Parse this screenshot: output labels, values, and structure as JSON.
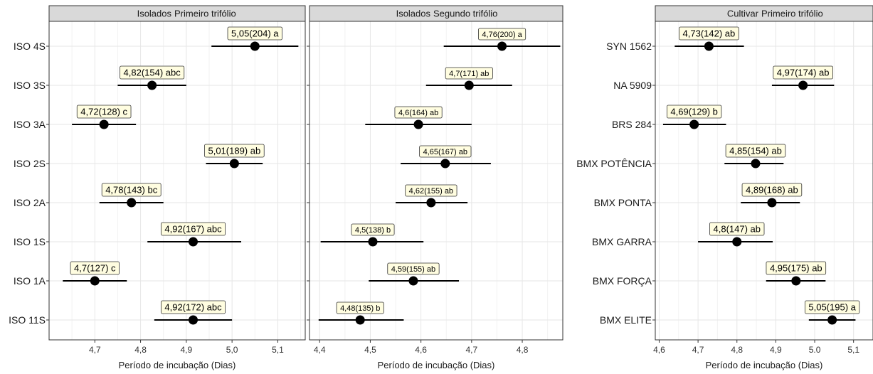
{
  "chart_data": [
    {
      "type": "scatter",
      "strip": {
        "left": "Isolados",
        "right": "Primeiro trifólio"
      },
      "xlabel": "Período de incubação (Dias)",
      "xlim": [
        4.6,
        5.16
      ],
      "xticks": [
        "4,7",
        "4,8",
        "4,9",
        "5,0",
        "5,1"
      ],
      "xtick_values": [
        4.7,
        4.8,
        4.9,
        5.0,
        5.1
      ],
      "categories": [
        "ISO 4S",
        "ISO 3S",
        "ISO 3A",
        "ISO 2S",
        "ISO 2A",
        "ISO 1S",
        "ISO 1A",
        "ISO 11S"
      ],
      "points": [
        {
          "label": "ISO 4S",
          "mean": 5.05,
          "low": 4.955,
          "high": 5.145,
          "text": "5,05(204)  a"
        },
        {
          "label": "ISO 3S",
          "mean": 4.825,
          "low": 4.75,
          "high": 4.9,
          "text": "4,82(154)  abc"
        },
        {
          "label": "ISO 3A",
          "mean": 4.72,
          "low": 4.65,
          "high": 4.79,
          "text": "4,72(128)    c"
        },
        {
          "label": "ISO 2S",
          "mean": 5.005,
          "low": 4.943,
          "high": 5.067,
          "text": "5,01(189)  ab"
        },
        {
          "label": "ISO 2A",
          "mean": 4.78,
          "low": 4.71,
          "high": 4.85,
          "text": "4,78(143)   bc"
        },
        {
          "label": "ISO 1S",
          "mean": 4.915,
          "low": 4.815,
          "high": 5.02,
          "text": "4,92(167)  abc"
        },
        {
          "label": "ISO 1A",
          "mean": 4.7,
          "low": 4.63,
          "high": 4.77,
          "text": "4,7(127)    c"
        },
        {
          "label": "ISO 11S",
          "mean": 4.915,
          "low": 4.83,
          "high": 5.0,
          "text": "4,92(172)  abc"
        }
      ]
    },
    {
      "type": "scatter",
      "strip": {
        "left": "Isolados",
        "right": "Segundo trifólio"
      },
      "xlabel": "Período de incubação (Dias)",
      "xlim": [
        4.38,
        4.88
      ],
      "xticks": [
        "4,4",
        "4,5",
        "4,6",
        "4,7",
        "4,8"
      ],
      "xtick_values": [
        4.4,
        4.5,
        4.6,
        4.7,
        4.8
      ],
      "categories": [
        "ISO 4S",
        "ISO 3S",
        "ISO 3A",
        "ISO 2S",
        "ISO 2A",
        "ISO 1S",
        "ISO 1A",
        "ISO 11S"
      ],
      "points": [
        {
          "label": "ISO 4S",
          "mean": 4.76,
          "low": 4.645,
          "high": 4.875,
          "text": "4,76(200)  a"
        },
        {
          "label": "ISO 3S",
          "mean": 4.695,
          "low": 4.61,
          "high": 4.78,
          "text": "4,7(171)  ab"
        },
        {
          "label": "ISO 3A",
          "mean": 4.595,
          "low": 4.49,
          "high": 4.7,
          "text": "4,6(164)  ab"
        },
        {
          "label": "ISO 2S",
          "mean": 4.648,
          "low": 4.56,
          "high": 4.738,
          "text": "4,65(167)  ab"
        },
        {
          "label": "ISO 2A",
          "mean": 4.62,
          "low": 4.55,
          "high": 4.692,
          "text": "4,62(155)  ab"
        },
        {
          "label": "ISO 1S",
          "mean": 4.505,
          "low": 4.402,
          "high": 4.605,
          "text": "4,5(138)   b"
        },
        {
          "label": "ISO 1A",
          "mean": 4.585,
          "low": 4.497,
          "high": 4.675,
          "text": "4,59(155)  ab"
        },
        {
          "label": "ISO 11S",
          "mean": 4.48,
          "low": 4.398,
          "high": 4.566,
          "text": "4,48(135)   b"
        }
      ]
    },
    {
      "type": "scatter",
      "strip": {
        "left": "Cultivar",
        "right": "Primeiro trifólio"
      },
      "xlabel": "Período de incubação (Dias)",
      "xlim": [
        4.59,
        5.15
      ],
      "xticks": [
        "4,6",
        "4,7",
        "4,8",
        "4,9",
        "5.0",
        "5,1"
      ],
      "xtick_values": [
        4.6,
        4.7,
        4.8,
        4.9,
        5.0,
        5.1
      ],
      "categories": [
        "SYN 1562",
        "NA 5909",
        "BRS 284",
        "BMX POTÊNCIA",
        "BMX PONTA",
        "BMX GARRA",
        "BMX FORÇA",
        "BMX ELITE"
      ],
      "points": [
        {
          "label": "SYN 1562",
          "mean": 4.728,
          "low": 4.64,
          "high": 4.818,
          "text": "4,73(142)  ab"
        },
        {
          "label": "NA 5909",
          "mean": 4.97,
          "low": 4.89,
          "high": 5.05,
          "text": "4,97(174)  ab"
        },
        {
          "label": "BRS 284",
          "mean": 4.69,
          "low": 4.61,
          "high": 4.772,
          "text": "4,69(129)   b"
        },
        {
          "label": "BMX POTÊNCIA",
          "mean": 4.848,
          "low": 4.768,
          "high": 4.92,
          "text": "4,85(154)  ab"
        },
        {
          "label": "BMX PONTA",
          "mean": 4.89,
          "low": 4.81,
          "high": 4.962,
          "text": "4,89(168)  ab"
        },
        {
          "label": "BMX GARRA",
          "mean": 4.8,
          "low": 4.7,
          "high": 4.892,
          "text": "4,8(147)  ab"
        },
        {
          "label": "BMX FORÇA",
          "mean": 4.952,
          "low": 4.875,
          "high": 5.028,
          "text": "4,95(175)  ab"
        },
        {
          "label": "BMX ELITE",
          "mean": 5.045,
          "low": 4.985,
          "high": 5.105,
          "text": "5,05(195)  a"
        }
      ]
    }
  ]
}
